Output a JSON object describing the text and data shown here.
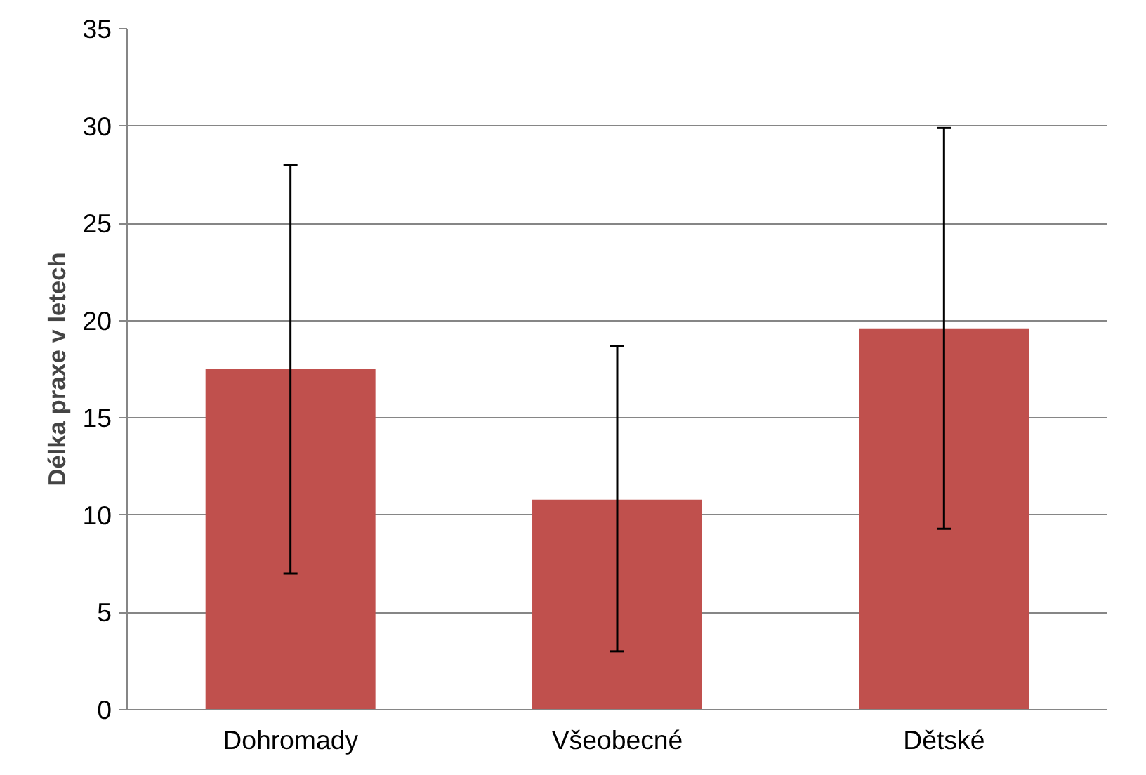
{
  "chart_data": {
    "type": "bar",
    "ylabel": "Délka praxe v letech",
    "categories": [
      "Dohromady",
      "Všeobecné",
      "Dětské"
    ],
    "values": [
      17.5,
      10.8,
      19.6
    ],
    "color": "#c0504d",
    "errors": [
      [
        7.0,
        28.0
      ],
      [
        3.0,
        18.7
      ],
      [
        9.3,
        29.9
      ]
    ],
    "ylim": [
      0,
      35
    ],
    "yticks": [
      0,
      5,
      10,
      15,
      20,
      25,
      30,
      35
    ],
    "grid": "y"
  }
}
